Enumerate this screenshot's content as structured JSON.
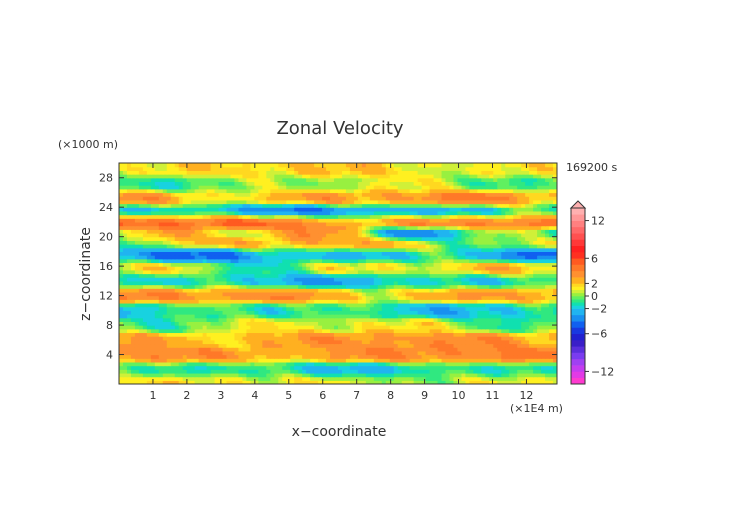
{
  "chart_data": {
    "type": "heatmap",
    "title": "Zonal Velocity",
    "xlabel": "x−coordinate",
    "ylabel": "z−coordinate",
    "x_unit": "(×1E4 m)",
    "y_unit": "(×1000 m)",
    "time_label": "169200 s",
    "xlim": [
      0,
      12.9
    ],
    "ylim": [
      0,
      30
    ],
    "x_ticks": [
      1,
      2,
      3,
      4,
      5,
      6,
      7,
      8,
      9,
      10,
      11,
      12
    ],
    "y_ticks": [
      4,
      8,
      12,
      16,
      20,
      24,
      28
    ],
    "colorbar": {
      "levels": [
        -14,
        -13,
        -12,
        -11,
        -10,
        -9,
        -8,
        -7,
        -6,
        -5,
        -4,
        -3,
        -2,
        -1.5,
        -1,
        -0.5,
        0,
        0.5,
        1,
        1.5,
        2,
        3,
        4,
        5,
        6,
        7,
        8,
        9,
        10,
        11,
        12,
        13,
        14
      ],
      "colors": [
        "#ff3ad0",
        "#e23ae6",
        "#c43cf0",
        "#a040f2",
        "#7a3cf0",
        "#5a2edc",
        "#3a1ec8",
        "#2020d0",
        "#1838e0",
        "#1060f0",
        "#1890f0",
        "#20b4f0",
        "#18d2e0",
        "#10e0b0",
        "#30e880",
        "#60f060",
        "#98f040",
        "#d0f038",
        "#fff020",
        "#ffd820",
        "#ffb020",
        "#ff9030",
        "#ff7828",
        "#ff5a20",
        "#ff3020",
        "#ff2020",
        "#ff3838",
        "#ff5050",
        "#ff6868",
        "#ff8080",
        "#ff9898",
        "#ffb0b0"
      ],
      "tick_labels": [
        "12",
        "6",
        "2",
        "0",
        "−2",
        "−6",
        "−12"
      ],
      "tick_values": [
        12,
        6,
        2,
        0,
        -2,
        -6,
        -12
      ]
    },
    "bands": [
      {
        "z": 0.4,
        "base": 1.0,
        "amp": 1.0
      },
      {
        "z": 2.0,
        "base": -1.5,
        "amp": 1.5
      },
      {
        "z": 4.0,
        "base": 3.5,
        "amp": 1.5
      },
      {
        "z": 6.0,
        "base": 3.0,
        "amp": 1.5
      },
      {
        "z": 8.0,
        "base": 0.5,
        "amp": 1.8
      },
      {
        "z": 10.0,
        "base": -1.5,
        "amp": 1.5
      },
      {
        "z": 12.2,
        "base": 3.0,
        "amp": 2.0
      },
      {
        "z": 14.0,
        "base": -2.0,
        "amp": 1.8
      },
      {
        "z": 15.8,
        "base": 1.0,
        "amp": 2.5
      },
      {
        "z": 17.6,
        "base": -3.0,
        "amp": 2.5
      },
      {
        "z": 19.2,
        "base": 2.0,
        "amp": 3.0
      },
      {
        "z": 20.3,
        "base": 0.0,
        "amp": 6.0
      },
      {
        "z": 22.2,
        "base": 5.0,
        "amp": 2.5
      },
      {
        "z": 23.4,
        "base": -3.5,
        "amp": 2.5
      },
      {
        "z": 25.2,
        "base": 3.0,
        "amp": 2.0
      },
      {
        "z": 27.2,
        "base": 0.0,
        "amp": 1.5
      },
      {
        "z": 29.2,
        "base": 1.5,
        "amp": 1.0
      }
    ]
  }
}
